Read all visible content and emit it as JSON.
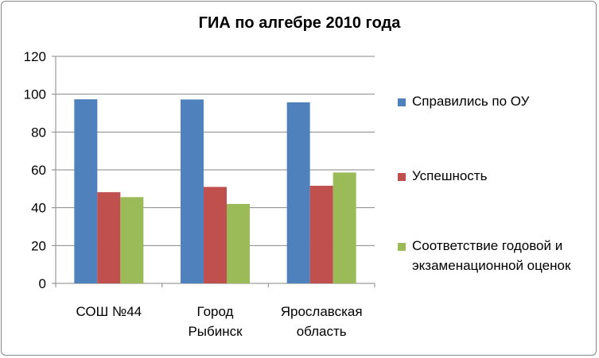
{
  "chart_data": {
    "type": "bar",
    "title": "ГИА по алгебре 2010 года",
    "categories": [
      [
        "СОШ №44"
      ],
      [
        "Город",
        "Рыбинск"
      ],
      [
        "Ярославская",
        "область"
      ]
    ],
    "series": [
      {
        "name": "Справились по ОУ",
        "color": "#4f81bd",
        "values": [
          97.3,
          97.2,
          95.7
        ]
      },
      {
        "name": "Успешность",
        "color": "#c0504d",
        "values": [
          48.2,
          51.0,
          51.6
        ]
      },
      {
        "name": "Соответствие годовой и экзаменационной оценок",
        "color": "#9bbb59",
        "values": [
          45.6,
          42.0,
          58.6
        ]
      }
    ],
    "ylim": [
      0,
      120
    ],
    "yticks": [
      0,
      20,
      40,
      60,
      80,
      100,
      120
    ],
    "grid": true,
    "legend_position": "right"
  }
}
